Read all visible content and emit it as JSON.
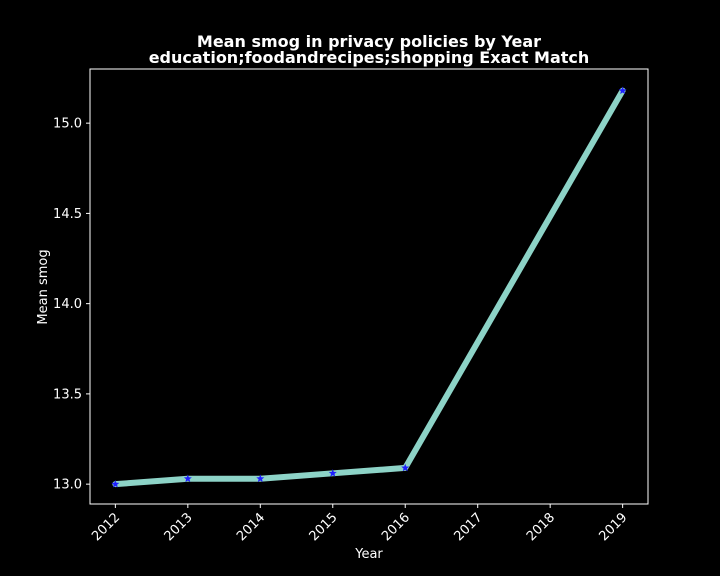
{
  "chart_data": {
    "type": "line",
    "title": "Mean smog in privacy policies by Year",
    "subtitle": "education;foodandrecipes;shopping Exact Match",
    "xlabel": "Year",
    "ylabel": "Mean smog",
    "x": [
      2012,
      2013,
      2014,
      2015,
      2016,
      2019
    ],
    "y": [
      13.0,
      13.03,
      13.03,
      13.06,
      13.09,
      15.18
    ],
    "xlim": [
      2011.65,
      2019.35
    ],
    "ylim": [
      12.89,
      15.3
    ],
    "xticks": [
      "2012",
      "2013",
      "2014",
      "2015",
      "2016",
      "2017",
      "2018",
      "2019"
    ],
    "yticks": [
      "13.0",
      "13.5",
      "14.0",
      "14.5",
      "15.0"
    ],
    "grid": false,
    "line_color": "#8dd3c7",
    "marker_color": "#1f1fff",
    "marker": "star",
    "background": "#000000",
    "foreground": "#ffffff"
  }
}
